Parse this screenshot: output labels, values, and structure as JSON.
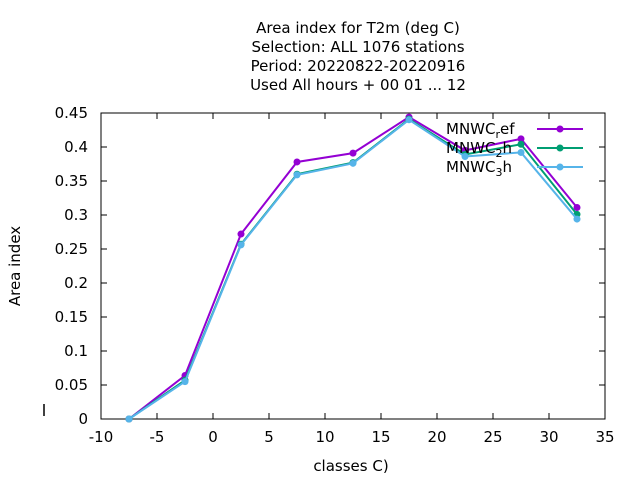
{
  "chart_data": {
    "type": "line",
    "title_lines": [
      "Area index  for T2m (deg C)",
      "Selection: ALL   1076 stations",
      "Period: 20220822-20220916",
      "Used  All hours + 00 01 ... 12"
    ],
    "xlabel": "classes C)",
    "ylabel": "Area index",
    "xlim": [
      -10,
      35
    ],
    "ylim": [
      0,
      0.45
    ],
    "xticks": [
      "-10",
      "-5",
      "0",
      "5",
      "10",
      "15",
      "20",
      "25",
      "30",
      "35"
    ],
    "yticks": [
      "0",
      "0.05",
      "0.1",
      "0.15",
      "0.2",
      "0.25",
      "0.3",
      "0.35",
      "0.4",
      "0.45"
    ],
    "grid": false,
    "legend_position": "top-right",
    "x": [
      -7.5,
      -2.5,
      2.5,
      7.5,
      12.5,
      17.5,
      22.5,
      27.5,
      32.5
    ],
    "series": [
      {
        "name": "MNWC_ref",
        "legend_base": "MNWC",
        "legend_sub": "r",
        "legend_rest": "ef",
        "color": "#9400d3",
        "values": [
          0.0,
          0.064,
          0.272,
          0.378,
          0.391,
          0.444,
          0.395,
          0.412,
          0.311
        ]
      },
      {
        "name": "MNWC_2h",
        "legend_base": "MNWC",
        "legend_sub": "2",
        "legend_rest": "h",
        "color": "#009e73",
        "values": [
          0.0,
          0.057,
          0.257,
          0.36,
          0.377,
          0.441,
          0.389,
          0.404,
          0.301
        ]
      },
      {
        "name": "MNWC_3h",
        "legend_base": "MNWC",
        "legend_sub": "3",
        "legend_rest": "h",
        "color": "#56b4e9",
        "values": [
          0.0,
          0.055,
          0.256,
          0.359,
          0.376,
          0.44,
          0.386,
          0.392,
          0.294
        ]
      }
    ]
  }
}
